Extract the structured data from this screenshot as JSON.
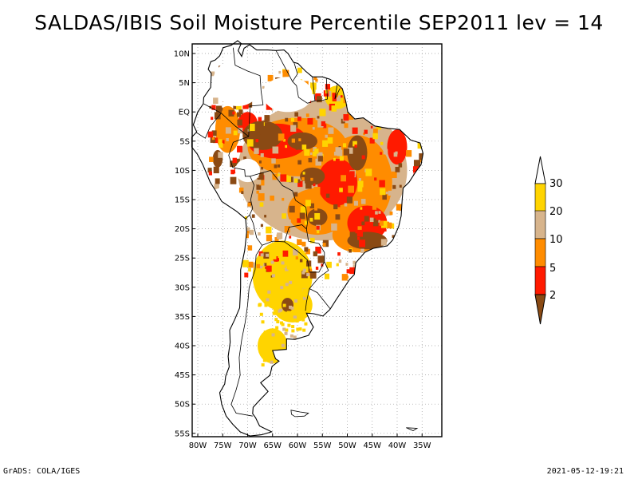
{
  "title": "SALDAS/IBIS Soil Moisture Percentile SEP2011 lev = 14",
  "map": {
    "lat_labels": [
      "10N",
      "5N",
      "EQ",
      "5S",
      "10S",
      "15S",
      "20S",
      "25S",
      "30S",
      "35S",
      "40S",
      "45S",
      "50S",
      "55S"
    ],
    "lon_labels": [
      "80W",
      "75W",
      "70W",
      "65W",
      "60W",
      "55W",
      "50W",
      "45W",
      "40W",
      "35W"
    ]
  },
  "legend": {
    "labels": [
      "2",
      "5",
      "10",
      "20",
      "30"
    ],
    "colors": {
      "lt2": "#8a4a14",
      "c2_5": "#ff1a00",
      "c5_10": "#ff8c00",
      "c10_20": "#d7b48c",
      "c20_30": "#ffd400",
      "gt30": "#ffffff"
    }
  },
  "footer": {
    "left": "GrADS: COLA/IGES",
    "right": "2021-05-12-19:21"
  }
}
